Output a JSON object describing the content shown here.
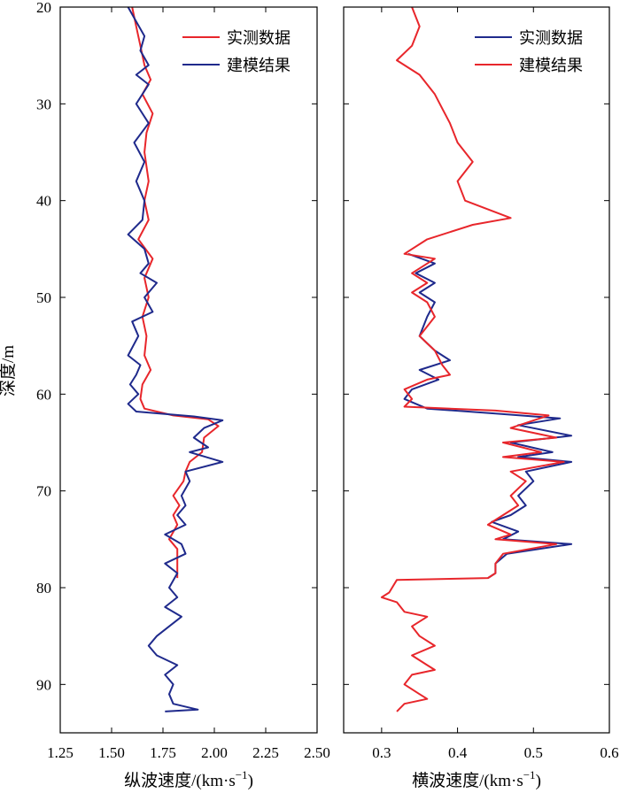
{
  "figure": {
    "y_label": "深度/m"
  },
  "chart_data": [
    {
      "type": "line",
      "x_label_text": "纵波速度/(km·s",
      "x_label_sup": "−1",
      "x_label_close": ")",
      "ylabel": "深度/m",
      "xlim": [
        1.25,
        2.5
      ],
      "ylim": [
        20,
        95
      ],
      "y_inverted": true,
      "xticks": [
        "1.25",
        "1.50",
        "1.75",
        "2.00",
        "2.25",
        "2.50"
      ],
      "yticks": [
        "20",
        "30",
        "40",
        "50",
        "60",
        "70",
        "80",
        "90"
      ],
      "legend_position": "top-right",
      "series": [
        {
          "name": "实测数据",
          "color": "#e8262b",
          "points": [
            [
              1.6,
              20
            ],
            [
              1.62,
              22
            ],
            [
              1.64,
              24
            ],
            [
              1.66,
              26
            ],
            [
              1.69,
              27.5
            ],
            [
              1.65,
              29
            ],
            [
              1.7,
              31
            ],
            [
              1.67,
              33
            ],
            [
              1.66,
              35
            ],
            [
              1.68,
              38
            ],
            [
              1.66,
              40
            ],
            [
              1.68,
              42
            ],
            [
              1.63,
              44
            ],
            [
              1.7,
              46
            ],
            [
              1.66,
              48
            ],
            [
              1.68,
              50
            ],
            [
              1.65,
              52
            ],
            [
              1.67,
              54
            ],
            [
              1.66,
              56
            ],
            [
              1.69,
              57.5
            ],
            [
              1.65,
              59
            ],
            [
              1.64,
              60.5
            ],
            [
              1.66,
              61.5
            ],
            [
              1.8,
              62.2
            ],
            [
              1.97,
              62.6
            ],
            [
              2.02,
              63.3
            ],
            [
              1.95,
              64.5
            ],
            [
              1.94,
              66
            ],
            [
              1.88,
              67
            ],
            [
              1.86,
              68
            ],
            [
              1.85,
              69
            ],
            [
              1.8,
              70.5
            ],
            [
              1.83,
              71.5
            ],
            [
              1.8,
              72.5
            ],
            [
              1.82,
              73.5
            ],
            [
              1.78,
              75
            ],
            [
              1.82,
              76
            ],
            [
              1.82,
              77.5
            ],
            [
              1.82,
              79
            ]
          ]
        },
        {
          "name": "建模结果",
          "color": "#1f2a8c",
          "points": [
            [
              1.58,
              20
            ],
            [
              1.62,
              21.5
            ],
            [
              1.66,
              23
            ],
            [
              1.64,
              24.5
            ],
            [
              1.68,
              26
            ],
            [
              1.62,
              27
            ],
            [
              1.68,
              28
            ],
            [
              1.62,
              30
            ],
            [
              1.68,
              32
            ],
            [
              1.61,
              34
            ],
            [
              1.66,
              36
            ],
            [
              1.62,
              38
            ],
            [
              1.66,
              40
            ],
            [
              1.65,
              42
            ],
            [
              1.58,
              43.5
            ],
            [
              1.66,
              45
            ],
            [
              1.68,
              46.5
            ],
            [
              1.64,
              47.5
            ],
            [
              1.72,
              48.5
            ],
            [
              1.66,
              50
            ],
            [
              1.7,
              51.5
            ],
            [
              1.6,
              52.5
            ],
            [
              1.63,
              54
            ],
            [
              1.58,
              56
            ],
            [
              1.64,
              57
            ],
            [
              1.62,
              58
            ],
            [
              1.59,
              59
            ],
            [
              1.63,
              60
            ],
            [
              1.58,
              61
            ],
            [
              1.62,
              61.8
            ],
            [
              1.9,
              62.3
            ],
            [
              2.04,
              62.7
            ],
            [
              1.95,
              63.5
            ],
            [
              1.9,
              64.5
            ],
            [
              1.97,
              65.5
            ],
            [
              1.88,
              66
            ],
            [
              2.04,
              67
            ],
            [
              1.86,
              68
            ],
            [
              1.88,
              69
            ],
            [
              1.84,
              70.5
            ],
            [
              1.86,
              71.5
            ],
            [
              1.82,
              72.5
            ],
            [
              1.86,
              73.5
            ],
            [
              1.76,
              74.5
            ],
            [
              1.84,
              75.5
            ],
            [
              1.86,
              76.5
            ],
            [
              1.76,
              77.5
            ],
            [
              1.82,
              78.5
            ],
            [
              1.78,
              80
            ],
            [
              1.82,
              81
            ],
            [
              1.76,
              82
            ],
            [
              1.84,
              83
            ],
            [
              1.78,
              84
            ],
            [
              1.72,
              85
            ],
            [
              1.68,
              86
            ],
            [
              1.72,
              87
            ],
            [
              1.82,
              88
            ],
            [
              1.76,
              89
            ],
            [
              1.8,
              90
            ],
            [
              1.78,
              91
            ],
            [
              1.8,
              92
            ],
            [
              1.92,
              92.6
            ],
            [
              1.76,
              92.8
            ]
          ]
        }
      ]
    },
    {
      "type": "line",
      "x_label_text": "横波速度/(km·s",
      "x_label_sup": "−1",
      "x_label_close": ")",
      "ylabel": "深度/m",
      "xlim": [
        0.25,
        0.6
      ],
      "ylim": [
        20,
        95
      ],
      "y_inverted": true,
      "xticks": [
        "0.3",
        "0.4",
        "0.5",
        "0.6"
      ],
      "yticks": [
        "20",
        "30",
        "40",
        "50",
        "60",
        "70",
        "80",
        "90"
      ],
      "legend_position": "top-right",
      "series": [
        {
          "name": "实测数据",
          "color": "#1f2a8c",
          "points": [
            [
              0.335,
              45.5
            ],
            [
              0.37,
              46.5
            ],
            [
              0.345,
              47.5
            ],
            [
              0.37,
              48.5
            ],
            [
              0.35,
              49.5
            ],
            [
              0.37,
              50.5
            ],
            [
              0.36,
              52
            ],
            [
              0.35,
              54
            ],
            [
              0.37,
              55.5
            ],
            [
              0.39,
              56.5
            ],
            [
              0.35,
              57.5
            ],
            [
              0.375,
              58.5
            ],
            [
              0.34,
              59.5
            ],
            [
              0.33,
              60.5
            ],
            [
              0.36,
              61.5
            ],
            [
              0.45,
              62
            ],
            [
              0.535,
              62.5
            ],
            [
              0.48,
              63.2
            ],
            [
              0.55,
              64.3
            ],
            [
              0.47,
              65
            ],
            [
              0.525,
              66
            ],
            [
              0.48,
              66.5
            ],
            [
              0.55,
              67
            ],
            [
              0.49,
              68
            ],
            [
              0.5,
              69
            ],
            [
              0.48,
              70.5
            ],
            [
              0.49,
              71.5
            ],
            [
              0.47,
              72.5
            ],
            [
              0.445,
              73.2
            ],
            [
              0.48,
              74.2
            ],
            [
              0.46,
              75
            ],
            [
              0.55,
              75.5
            ],
            [
              0.465,
              76.5
            ],
            [
              0.45,
              77.5
            ],
            [
              0.45,
              78.5
            ],
            [
              0.44,
              79
            ]
          ]
        },
        {
          "name": "建模结果",
          "color": "#e8262b",
          "points": [
            [
              0.34,
              20
            ],
            [
              0.35,
              22
            ],
            [
              0.34,
              24
            ],
            [
              0.32,
              25.5
            ],
            [
              0.35,
              27
            ],
            [
              0.37,
              29
            ],
            [
              0.38,
              30.5
            ],
            [
              0.39,
              32
            ],
            [
              0.4,
              34
            ],
            [
              0.42,
              36
            ],
            [
              0.4,
              38
            ],
            [
              0.41,
              40
            ],
            [
              0.47,
              41.8
            ],
            [
              0.42,
              42.5
            ],
            [
              0.36,
              44
            ],
            [
              0.33,
              45.5
            ],
            [
              0.37,
              46
            ],
            [
              0.34,
              47.5
            ],
            [
              0.36,
              48.5
            ],
            [
              0.34,
              49.5
            ],
            [
              0.36,
              50.5
            ],
            [
              0.37,
              52
            ],
            [
              0.35,
              54
            ],
            [
              0.37,
              55.5
            ],
            [
              0.38,
              57
            ],
            [
              0.39,
              58
            ],
            [
              0.36,
              58.5
            ],
            [
              0.33,
              59.5
            ],
            [
              0.34,
              60.5
            ],
            [
              0.33,
              61.3
            ],
            [
              0.45,
              61.7
            ],
            [
              0.52,
              62.2
            ],
            [
              0.47,
              63.5
            ],
            [
              0.53,
              64.5
            ],
            [
              0.46,
              65
            ],
            [
              0.51,
              66
            ],
            [
              0.46,
              66.5
            ],
            [
              0.54,
              67
            ],
            [
              0.47,
              68
            ],
            [
              0.49,
              69
            ],
            [
              0.47,
              70.5
            ],
            [
              0.48,
              71.5
            ],
            [
              0.46,
              72.5
            ],
            [
              0.44,
              73.5
            ],
            [
              0.47,
              74.5
            ],
            [
              0.45,
              75
            ],
            [
              0.53,
              75.5
            ],
            [
              0.46,
              76.5
            ],
            [
              0.45,
              77.5
            ],
            [
              0.45,
              78.5
            ],
            [
              0.44,
              79
            ],
            [
              0.32,
              79.2
            ],
            [
              0.31,
              80.5
            ],
            [
              0.3,
              81
            ],
            [
              0.32,
              81.5
            ],
            [
              0.33,
              82.5
            ],
            [
              0.36,
              83
            ],
            [
              0.34,
              84
            ],
            [
              0.35,
              85
            ],
            [
              0.37,
              86
            ],
            [
              0.34,
              87
            ],
            [
              0.36,
              88
            ],
            [
              0.37,
              88.5
            ],
            [
              0.34,
              89
            ],
            [
              0.33,
              90
            ],
            [
              0.35,
              91
            ],
            [
              0.36,
              91.5
            ],
            [
              0.33,
              92
            ],
            [
              0.32,
              92.8
            ]
          ]
        }
      ]
    }
  ]
}
